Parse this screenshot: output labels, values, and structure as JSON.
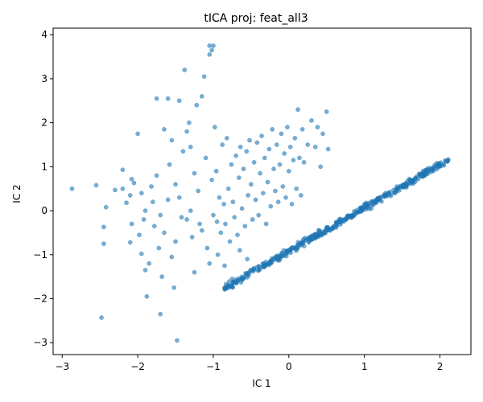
{
  "chart_data": {
    "type": "scatter",
    "title": "tICA proj: feat_all3",
    "xlabel": "IC 1",
    "ylabel": "IC 2",
    "xlim": [
      -3.12,
      2.41
    ],
    "ylim": [
      -3.27,
      4.15
    ],
    "xticks": [
      -3,
      -2,
      -1,
      0,
      1,
      2
    ],
    "yticks": [
      -3,
      -2,
      -1,
      0,
      1,
      2,
      3,
      4
    ],
    "grid": false,
    "legend": "none",
    "marker_color": "#1f77b4",
    "marker_opacity": 0.6,
    "series": [
      {
        "points": [
          [
            -2.87,
            0.5
          ],
          [
            -2.48,
            -2.43
          ],
          [
            -2.45,
            -0.75
          ],
          [
            -2.45,
            -0.37
          ],
          [
            -2.42,
            0.08
          ],
          [
            -2.55,
            0.58
          ],
          [
            -2.3,
            0.47
          ],
          [
            -2.2,
            0.93
          ],
          [
            -2.08,
            0.72
          ],
          [
            -2.05,
            0.63
          ],
          [
            -2.1,
            -0.72
          ],
          [
            -2.08,
            -0.3
          ],
          [
            -2.15,
            0.18
          ],
          [
            -2.1,
            0.35
          ],
          [
            -2.0,
            1.75
          ],
          [
            -1.92,
            -0.2
          ],
          [
            -1.98,
            -0.55
          ],
          [
            -1.95,
            -0.98
          ],
          [
            -1.9,
            -1.35
          ],
          [
            -1.88,
            -1.95
          ],
          [
            -1.85,
            -1.2
          ],
          [
            -1.82,
            0.55
          ],
          [
            -1.8,
            0.2
          ],
          [
            -1.78,
            -0.35
          ],
          [
            -1.75,
            0.8
          ],
          [
            -1.72,
            -0.85
          ],
          [
            -1.7,
            -2.35
          ],
          [
            -1.68,
            -1.5
          ],
          [
            -1.65,
            -0.5
          ],
          [
            -1.6,
            0.25
          ],
          [
            -1.58,
            1.05
          ],
          [
            -1.55,
            -1.05
          ],
          [
            -1.52,
            -1.75
          ],
          [
            -1.5,
            0.6
          ],
          [
            -1.48,
            -2.95
          ],
          [
            -1.45,
            0.3
          ],
          [
            -1.42,
            -0.15
          ],
          [
            -1.4,
            1.35
          ],
          [
            -1.38,
            3.2
          ],
          [
            -1.35,
            1.8
          ],
          [
            -1.32,
            2.0
          ],
          [
            -1.3,
            0.0
          ],
          [
            -1.28,
            -0.6
          ],
          [
            -1.25,
            -1.4
          ],
          [
            -1.22,
            2.4
          ],
          [
            -1.2,
            0.45
          ],
          [
            -1.18,
            -0.3
          ],
          [
            -1.15,
            2.6
          ],
          [
            -1.12,
            3.05
          ],
          [
            -1.1,
            1.2
          ],
          [
            -1.08,
            -0.85
          ],
          [
            -1.05,
            3.55
          ],
          [
            -1.02,
            0.7
          ],
          [
            -1.0,
            -0.1
          ],
          [
            -0.98,
            1.9
          ],
          [
            -0.96,
            0.9
          ],
          [
            -0.94,
            -1.0
          ],
          [
            -0.92,
            0.3
          ],
          [
            -0.9,
            -0.5
          ],
          [
            -0.88,
            1.5
          ],
          [
            -0.86,
            0.15
          ],
          [
            -0.84,
            -0.3
          ],
          [
            -0.82,
            1.65
          ],
          [
            -0.8,
            0.5
          ],
          [
            -0.78,
            -0.7
          ],
          [
            -0.76,
            1.05
          ],
          [
            -0.74,
            0.2
          ],
          [
            -0.72,
            -0.15
          ],
          [
            -0.7,
            1.25
          ],
          [
            -0.68,
            -0.55
          ],
          [
            -0.66,
            0.75
          ],
          [
            -0.64,
            1.45
          ],
          [
            -0.62,
            0.05
          ],
          [
            -0.6,
            0.95
          ],
          [
            -0.58,
            -0.35
          ],
          [
            -0.56,
            1.35
          ],
          [
            -0.54,
            0.35
          ],
          [
            -0.52,
            1.6
          ],
          [
            -0.5,
            0.6
          ],
          [
            -0.48,
            -0.2
          ],
          [
            -0.46,
            1.1
          ],
          [
            -0.44,
            0.25
          ],
          [
            -0.42,
            1.55
          ],
          [
            -0.4,
            -0.1
          ],
          [
            -0.38,
            0.85
          ],
          [
            -0.36,
            1.7
          ],
          [
            -0.34,
            0.4
          ],
          [
            -0.32,
            1.2
          ],
          [
            -0.3,
            -0.3
          ],
          [
            -0.28,
            0.65
          ],
          [
            -0.26,
            1.4
          ],
          [
            -0.24,
            0.1
          ],
          [
            -0.22,
            1.85
          ],
          [
            -0.2,
            0.95
          ],
          [
            -0.18,
            0.45
          ],
          [
            -0.16,
            1.5
          ],
          [
            -0.14,
            0.2
          ],
          [
            -0.12,
            1.05
          ],
          [
            -0.1,
            1.75
          ],
          [
            -0.08,
            0.55
          ],
          [
            -0.06,
            1.3
          ],
          [
            -0.04,
            0.3
          ],
          [
            -0.02,
            1.9
          ],
          [
            0.0,
            0.9
          ],
          [
            0.02,
            1.45
          ],
          [
            0.04,
            0.15
          ],
          [
            0.06,
            1.15
          ],
          [
            0.08,
            1.65
          ],
          [
            0.1,
            0.5
          ],
          [
            0.12,
            2.3
          ],
          [
            0.14,
            1.2
          ],
          [
            0.16,
            0.35
          ],
          [
            0.18,
            1.85
          ],
          [
            0.2,
            1.1
          ],
          [
            0.25,
            1.5
          ],
          [
            0.3,
            2.05
          ],
          [
            0.35,
            1.45
          ],
          [
            0.38,
            1.9
          ],
          [
            0.42,
            1.0
          ],
          [
            0.45,
            1.75
          ],
          [
            0.5,
            2.25
          ],
          [
            0.52,
            1.4
          ],
          [
            -1.45,
            2.5
          ],
          [
            -1.6,
            2.55
          ],
          [
            -1.75,
            2.55
          ],
          [
            -1.3,
            1.45
          ],
          [
            -1.55,
            1.6
          ],
          [
            -1.65,
            1.85
          ],
          [
            -2.2,
            0.5
          ],
          [
            -1.9,
            0.0
          ],
          [
            -1.35,
            -0.2
          ],
          [
            -1.15,
            -0.45
          ],
          [
            -1.25,
            0.85
          ],
          [
            -1.05,
            -1.2
          ],
          [
            -0.95,
            -0.25
          ],
          [
            -0.85,
            -1.25
          ],
          [
            -0.75,
            -1.55
          ],
          [
            -0.65,
            -0.9
          ],
          [
            -0.55,
            -1.1
          ],
          [
            -1.5,
            -0.7
          ],
          [
            -1.7,
            -0.1
          ],
          [
            -1.95,
            0.4
          ],
          [
            -1.05,
            3.75
          ],
          [
            -1.0,
            3.75
          ],
          [
            -1.02,
            3.65
          ]
        ]
      },
      {
        "band": {
          "x_start": -0.85,
          "x_end": 2.12,
          "slope": 0.98,
          "intercept": -0.92,
          "spread": 0.05,
          "count": 420
        }
      }
    ]
  }
}
